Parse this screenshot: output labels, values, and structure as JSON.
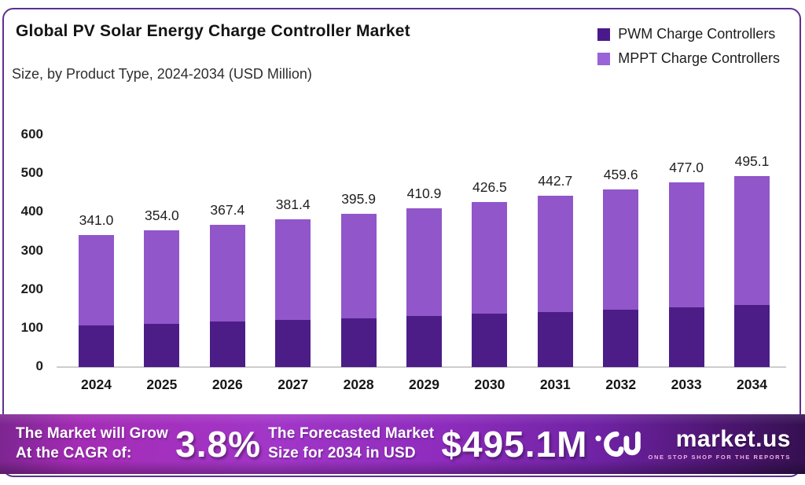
{
  "title": "Global PV Solar Energy Charge Controller Market",
  "subtitle": "Size, by Product Type, 2024-2034 (USD Million)",
  "legend": [
    {
      "label": "PWM Charge Controllers",
      "color": "#4a1a8c"
    },
    {
      "label": "MPPT Charge Controllers",
      "color": "#9a63d8"
    }
  ],
  "colors": {
    "pwm_bar": "#4c1d87",
    "mppt_bar": "#9156ca",
    "frame_border": "#5e3091",
    "axis_line": "#cfcccc",
    "banner_left": "#a42cb6",
    "banner_center": "#8e2cbd",
    "banner_right": "#341050"
  },
  "chart_data": {
    "type": "bar",
    "stacked": true,
    "title": "Global PV Solar Energy Charge Controller Market Size, by Product Type, 2024-2034 (USD Million)",
    "xlabel": "",
    "ylabel": "USD Million",
    "ylim": [
      0,
      600
    ],
    "yticks": [
      0,
      100,
      200,
      300,
      400,
      500,
      600
    ],
    "grid": false,
    "legend_position": "top-right",
    "categories": [
      "2024",
      "2025",
      "2026",
      "2027",
      "2028",
      "2029",
      "2030",
      "2031",
      "2032",
      "2033",
      "2034"
    ],
    "series": [
      {
        "name": "PWM Charge Controllers",
        "color": "#4c1d87",
        "values": [
          108.0,
          112.4,
          117.0,
          121.8,
          126.8,
          132.0,
          137.4,
          143.0,
          148.9,
          155.0,
          161.3
        ]
      },
      {
        "name": "MPPT Charge Controllers",
        "color": "#9156ca",
        "values": [
          233.0,
          241.6,
          250.4,
          259.6,
          269.1,
          278.9,
          289.1,
          299.7,
          310.7,
          322.0,
          333.8
        ]
      }
    ],
    "totals": [
      341.0,
      354.0,
      367.4,
      381.4,
      395.9,
      410.9,
      426.5,
      442.7,
      459.6,
      477.0,
      495.1
    ],
    "total_labels": [
      "341.0",
      "354.0",
      "367.4",
      "381.4",
      "395.9",
      "410.9",
      "426.5",
      "442.7",
      "459.6",
      "477.0",
      "495.1"
    ]
  },
  "banner": {
    "cagr_line1": "The Market will Grow",
    "cagr_line2": "At the CAGR of:",
    "cagr_value": "3.8%",
    "forecast_line1": "The Forecasted Market",
    "forecast_line2": "Size for 2034 in USD",
    "forecast_value": "$495.1M",
    "brand_name": "market.us",
    "brand_tagline": "ONE STOP SHOP FOR THE REPORTS"
  }
}
